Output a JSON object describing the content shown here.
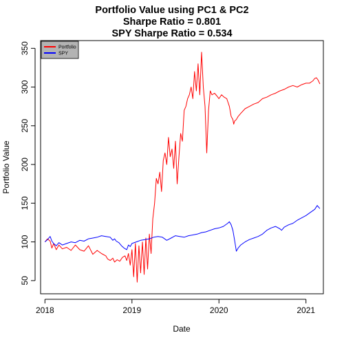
{
  "chart_data": {
    "type": "line",
    "title": [
      "Portfolio Value using PC1 & PC2",
      "Sharpe Ratio = 0.801",
      "SPY Sharpe Ratio = 0.534"
    ],
    "xlabel": "Date",
    "ylabel": "Portfolio Value",
    "xlim": [
      2017.95,
      2021.2
    ],
    "ylim": [
      33,
      360
    ],
    "x_ticks": [
      2018,
      2019,
      2020,
      2021
    ],
    "y_ticks": [
      50,
      100,
      150,
      200,
      250,
      300,
      350
    ],
    "grid": false,
    "legend": {
      "position": "top-left",
      "entries": [
        "Portfolio",
        "SPY"
      ]
    },
    "series": [
      {
        "name": "Portfolio",
        "color": "#ff0000",
        "x": [
          2018.0,
          2018.03,
          2018.06,
          2018.08,
          2018.1,
          2018.13,
          2018.16,
          2018.2,
          2018.25,
          2018.3,
          2018.35,
          2018.4,
          2018.45,
          2018.5,
          2018.55,
          2018.6,
          2018.65,
          2018.7,
          2018.72,
          2018.75,
          2018.78,
          2018.8,
          2018.83,
          2018.86,
          2018.89,
          2018.92,
          2018.94,
          2018.96,
          2018.98,
          2019.0,
          2019.02,
          2019.04,
          2019.06,
          2019.08,
          2019.1,
          2019.12,
          2019.14,
          2019.16,
          2019.18,
          2019.2,
          2019.22,
          2019.24,
          2019.26,
          2019.28,
          2019.3,
          2019.32,
          2019.34,
          2019.36,
          2019.38,
          2019.4,
          2019.42,
          2019.44,
          2019.46,
          2019.48,
          2019.5,
          2019.52,
          2019.54,
          2019.56,
          2019.58,
          2019.6,
          2019.62,
          2019.64,
          2019.66,
          2019.68,
          2019.7,
          2019.72,
          2019.74,
          2019.76,
          2019.78,
          2019.8,
          2019.82,
          2019.84,
          2019.86,
          2019.88,
          2019.9,
          2019.92,
          2019.95,
          2019.98,
          2020.0,
          2020.03,
          2020.06,
          2020.09,
          2020.12,
          2020.14,
          2020.16,
          2020.17,
          2020.18,
          2020.2,
          2020.22,
          2020.25,
          2020.3,
          2020.35,
          2020.4,
          2020.45,
          2020.5,
          2020.55,
          2020.6,
          2020.65,
          2020.7,
          2020.75,
          2020.8,
          2020.85,
          2020.9,
          2020.95,
          2021.0,
          2021.04,
          2021.08,
          2021.1,
          2021.12,
          2021.14,
          2021.16
        ],
        "values": [
          100,
          104,
          101,
          92,
          98,
          90,
          96,
          91,
          93,
          89,
          96,
          90,
          88,
          95,
          84,
          89,
          85,
          82,
          78,
          76,
          79,
          74,
          77,
          75,
          80,
          82,
          76,
          85,
          70,
          90,
          55,
          98,
          48,
          95,
          60,
          100,
          58,
          105,
          65,
          110,
          85,
          130,
          150,
          182,
          175,
          190,
          165,
          205,
          215,
          200,
          235,
          210,
          220,
          195,
          230,
          175,
          210,
          240,
          230,
          270,
          275,
          285,
          290,
          300,
          285,
          320,
          295,
          330,
          290,
          345,
          300,
          275,
          215,
          270,
          295,
          290,
          292,
          288,
          285,
          290,
          287,
          285,
          275,
          262,
          258,
          252,
          256,
          258,
          262,
          266,
          272,
          275,
          278,
          280,
          285,
          287,
          290,
          292,
          295,
          297,
          300,
          302,
          300,
          303,
          305,
          305,
          308,
          311,
          312,
          309,
          304
        ]
      },
      {
        "name": "SPY",
        "color": "#0000ff",
        "x": [
          2018.0,
          2018.03,
          2018.06,
          2018.08,
          2018.1,
          2018.13,
          2018.16,
          2018.2,
          2018.25,
          2018.3,
          2018.35,
          2018.4,
          2018.45,
          2018.5,
          2018.55,
          2018.6,
          2018.65,
          2018.7,
          2018.75,
          2018.78,
          2018.8,
          2018.82,
          2018.85,
          2018.88,
          2018.91,
          2018.94,
          2018.96,
          2018.98,
          2019.0,
          2019.05,
          2019.1,
          2019.15,
          2019.2,
          2019.25,
          2019.3,
          2019.35,
          2019.4,
          2019.45,
          2019.5,
          2019.55,
          2019.6,
          2019.65,
          2019.7,
          2019.75,
          2019.8,
          2019.85,
          2019.9,
          2019.95,
          2020.0,
          2020.05,
          2020.1,
          2020.12,
          2020.14,
          2020.16,
          2020.18,
          2020.2,
          2020.22,
          2020.25,
          2020.3,
          2020.35,
          2020.4,
          2020.45,
          2020.5,
          2020.55,
          2020.6,
          2020.65,
          2020.7,
          2020.72,
          2020.75,
          2020.8,
          2020.85,
          2020.9,
          2020.95,
          2021.0,
          2021.05,
          2021.1,
          2021.13,
          2021.16
        ],
        "values": [
          100,
          103,
          107,
          101,
          98,
          95,
          99,
          96,
          98,
          100,
          99,
          102,
          101,
          104,
          105,
          106,
          108,
          107,
          106,
          102,
          104,
          101,
          99,
          95,
          92,
          90,
          96,
          94,
          98,
          100,
          102,
          103,
          104,
          106,
          107,
          106,
          102,
          105,
          108,
          107,
          106,
          108,
          109,
          110,
          112,
          113,
          115,
          117,
          118,
          120,
          124,
          126,
          122,
          115,
          102,
          88,
          92,
          96,
          100,
          103,
          105,
          107,
          110,
          115,
          118,
          120,
          117,
          115,
          119,
          122,
          124,
          128,
          131,
          134,
          138,
          142,
          147,
          143
        ]
      }
    ]
  }
}
